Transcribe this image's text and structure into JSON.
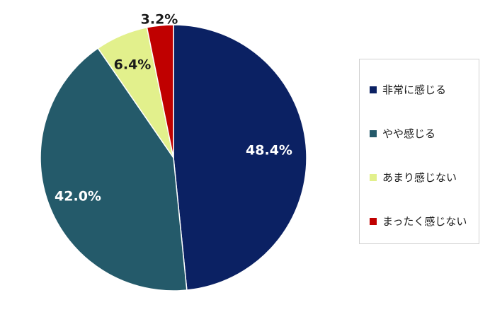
{
  "chart_data": {
    "type": "pie",
    "title": "",
    "categories": [
      "非常に感じる",
      "やや感じる",
      "あまり感じない",
      "まったく感じない"
    ],
    "values": [
      48.4,
      42.0,
      6.4,
      3.2
    ],
    "labels": [
      "48.4%",
      "42.0%",
      "6.4%",
      "3.2%"
    ],
    "colors": [
      "#0b2163",
      "#245a6a",
      "#e2f08c",
      "#c00000"
    ],
    "label_colors": [
      "#ffffff",
      "#ffffff",
      "#1a1a1a",
      "#1a1a1a"
    ],
    "start_angle": "12 o'clock",
    "direction": "clockwise",
    "legend": {
      "placement": "right"
    }
  }
}
